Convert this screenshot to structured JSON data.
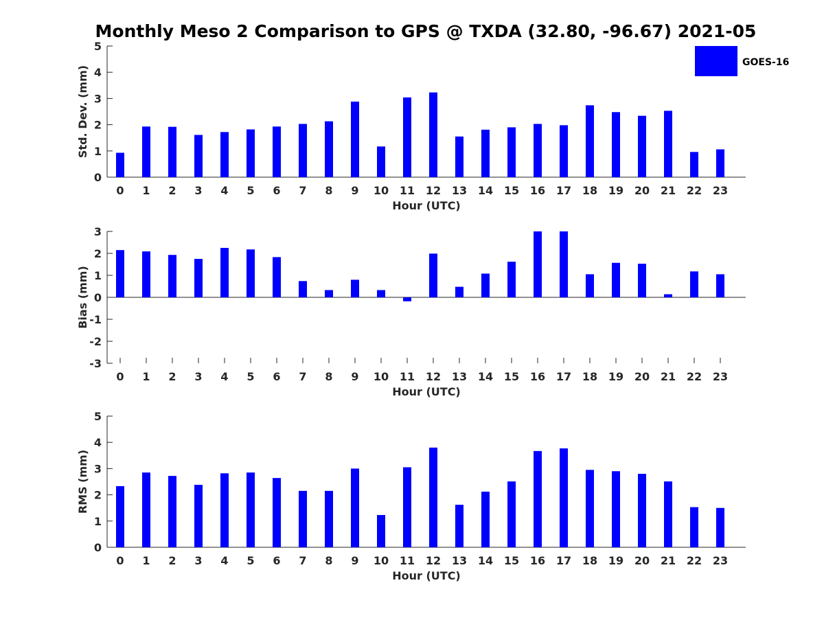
{
  "title": "Monthly Meso 2 Comparison to GPS @ TXDA (32.80, -96.67) 2021-05",
  "legend": {
    "label": "GOES-16",
    "color": "#0000ff",
    "placement": "top-right"
  },
  "colors": {
    "bar": "#0000ff",
    "axis": "#262626"
  },
  "chart_data": [
    {
      "type": "bar",
      "xlabel": "Hour (UTC)",
      "ylabel": "Std. Dev. (mm)",
      "ylim": [
        0,
        5
      ],
      "yticks": [
        "0",
        "1",
        "2",
        "3",
        "4",
        "5"
      ],
      "categories": [
        "0",
        "1",
        "2",
        "3",
        "4",
        "5",
        "6",
        "7",
        "8",
        "9",
        "10",
        "11",
        "12",
        "13",
        "14",
        "15",
        "16",
        "17",
        "18",
        "19",
        "20",
        "21",
        "22",
        "23"
      ],
      "series": [
        {
          "name": "GOES-16",
          "values": [
            0.93,
            1.93,
            1.92,
            1.61,
            1.72,
            1.82,
            1.93,
            2.03,
            2.13,
            2.88,
            1.17,
            3.04,
            3.23,
            1.55,
            1.81,
            1.9,
            2.03,
            1.98,
            2.74,
            2.48,
            2.34,
            2.53,
            0.96,
            1.06
          ]
        }
      ],
      "grid": false
    },
    {
      "type": "bar",
      "xlabel": "Hour (UTC)",
      "ylabel": "Bias (mm)",
      "ylim": [
        -3,
        3
      ],
      "yticks": [
        "-3",
        "-2",
        "-1",
        "0",
        "1",
        "2",
        "3"
      ],
      "categories": [
        "0",
        "1",
        "2",
        "3",
        "4",
        "5",
        "6",
        "7",
        "8",
        "9",
        "10",
        "11",
        "12",
        "13",
        "14",
        "15",
        "16",
        "17",
        "18",
        "19",
        "20",
        "21",
        "22",
        "23"
      ],
      "series": [
        {
          "name": "GOES-16",
          "values": [
            2.15,
            2.09,
            1.93,
            1.75,
            2.25,
            2.18,
            1.83,
            0.74,
            0.33,
            0.8,
            0.33,
            -0.18,
            1.99,
            0.48,
            1.08,
            1.62,
            3.0,
            3.0,
            1.05,
            1.57,
            1.53,
            0.14,
            1.18,
            1.05
          ]
        }
      ],
      "grid": false
    },
    {
      "type": "bar",
      "xlabel": "Hour (UTC)",
      "ylabel": "RMS (mm)",
      "ylim": [
        0,
        5
      ],
      "yticks": [
        "0",
        "1",
        "2",
        "3",
        "4",
        "5"
      ],
      "categories": [
        "0",
        "1",
        "2",
        "3",
        "4",
        "5",
        "6",
        "7",
        "8",
        "9",
        "10",
        "11",
        "12",
        "13",
        "14",
        "15",
        "16",
        "17",
        "18",
        "19",
        "20",
        "21",
        "22",
        "23"
      ],
      "series": [
        {
          "name": "GOES-16",
          "values": [
            2.33,
            2.85,
            2.72,
            2.38,
            2.82,
            2.85,
            2.64,
            2.15,
            2.15,
            3.0,
            1.23,
            3.05,
            3.8,
            1.62,
            2.12,
            2.51,
            3.67,
            3.77,
            2.95,
            2.9,
            2.8,
            2.51,
            1.53,
            1.5
          ]
        }
      ],
      "grid": false
    }
  ]
}
